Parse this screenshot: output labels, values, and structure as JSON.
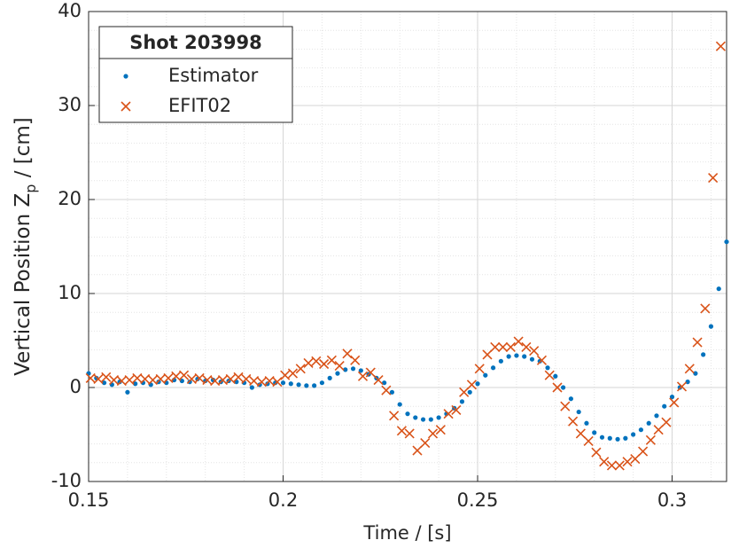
{
  "chart_data": {
    "type": "scatter",
    "xlabel": "Time / [s]",
    "ylabel": {
      "main": "Vertical Position Z",
      "sub": "p",
      "rest": " / [cm]"
    },
    "legend_title": "Shot 203998",
    "legend": "northwest",
    "grid": true,
    "minor_grid": true,
    "xminor_step": 0.01,
    "yminor_step": 2,
    "xlim": [
      0.15,
      0.314
    ],
    "ylim": [
      -10,
      40
    ],
    "xticks": [
      {
        "value": 0.15,
        "label": "0.15"
      },
      {
        "value": 0.2,
        "label": "0.2"
      },
      {
        "value": 0.25,
        "label": "0.25"
      },
      {
        "value": 0.3,
        "label": "0.3"
      }
    ],
    "yticks": [
      -10,
      0,
      10,
      20,
      30,
      40
    ],
    "series": [
      {
        "name": "Estimator",
        "color": "#0072BD",
        "marker": "dot",
        "x": [
          0.15,
          0.152,
          0.154,
          0.156,
          0.158,
          0.16,
          0.162,
          0.164,
          0.166,
          0.168,
          0.17,
          0.172,
          0.174,
          0.176,
          0.178,
          0.18,
          0.182,
          0.184,
          0.186,
          0.188,
          0.19,
          0.192,
          0.194,
          0.196,
          0.198,
          0.2,
          0.202,
          0.204,
          0.206,
          0.208,
          0.21,
          0.212,
          0.214,
          0.216,
          0.218,
          0.22,
          0.222,
          0.224,
          0.226,
          0.228,
          0.23,
          0.232,
          0.234,
          0.236,
          0.238,
          0.24,
          0.242,
          0.244,
          0.246,
          0.248,
          0.25,
          0.252,
          0.254,
          0.256,
          0.258,
          0.26,
          0.262,
          0.264,
          0.266,
          0.268,
          0.27,
          0.272,
          0.274,
          0.276,
          0.278,
          0.28,
          0.282,
          0.284,
          0.286,
          0.288,
          0.29,
          0.292,
          0.294,
          0.296,
          0.298,
          0.3,
          0.302,
          0.304,
          0.306,
          0.308,
          0.31,
          0.312,
          0.314
        ],
        "values": [
          1.5,
          1.0,
          0.5,
          0.3,
          0.6,
          -0.5,
          0.4,
          0.5,
          0.3,
          0.6,
          0.5,
          0.8,
          0.7,
          0.6,
          0.9,
          0.7,
          0.8,
          0.6,
          0.7,
          0.6,
          0.5,
          0.0,
          0.3,
          0.4,
          0.5,
          0.5,
          0.4,
          0.3,
          0.2,
          0.2,
          0.5,
          1.0,
          1.5,
          1.9,
          2.0,
          1.8,
          1.4,
          1.0,
          0.5,
          -0.5,
          -1.8,
          -2.8,
          -3.2,
          -3.4,
          -3.4,
          -3.2,
          -2.8,
          -2.2,
          -1.5,
          -0.5,
          0.4,
          1.3,
          2.1,
          2.8,
          3.3,
          3.4,
          3.3,
          3.0,
          2.8,
          2.1,
          1.2,
          0.0,
          -1.2,
          -2.6,
          -3.8,
          -4.8,
          -5.3,
          -5.4,
          -5.5,
          -5.4,
          -5.0,
          -4.5,
          -3.8,
          -3.0,
          -2.0,
          -1.0,
          0.0,
          0.6,
          1.5,
          3.5,
          6.5,
          10.5,
          15.5
        ]
      },
      {
        "name": "EFIT02",
        "color": "#D95319",
        "marker": "x",
        "x": [
          0.1505,
          0.1525,
          0.1545,
          0.1565,
          0.1585,
          0.1605,
          0.1625,
          0.1645,
          0.1665,
          0.1685,
          0.1705,
          0.1725,
          0.1745,
          0.1765,
          0.1785,
          0.1805,
          0.1825,
          0.1845,
          0.1865,
          0.1885,
          0.1905,
          0.1925,
          0.1945,
          0.1965,
          0.1985,
          0.2005,
          0.2025,
          0.2045,
          0.2065,
          0.2085,
          0.2105,
          0.2125,
          0.2145,
          0.2165,
          0.2185,
          0.2205,
          0.2225,
          0.2245,
          0.2265,
          0.2285,
          0.2305,
          0.2325,
          0.2345,
          0.2365,
          0.2385,
          0.2405,
          0.2425,
          0.2445,
          0.2465,
          0.2485,
          0.2505,
          0.2525,
          0.2545,
          0.2565,
          0.2585,
          0.2605,
          0.2625,
          0.2645,
          0.2665,
          0.2685,
          0.2705,
          0.2725,
          0.2745,
          0.2765,
          0.2785,
          0.2805,
          0.2825,
          0.2845,
          0.2865,
          0.2885,
          0.2905,
          0.2925,
          0.2945,
          0.2965,
          0.2985,
          0.3005,
          0.3025,
          0.3045,
          0.3065,
          0.3085,
          0.3105,
          0.3125
        ],
        "values": [
          1.0,
          0.9,
          1.1,
          0.8,
          0.7,
          0.8,
          1.0,
          0.9,
          0.8,
          0.9,
          1.0,
          1.2,
          1.3,
          0.9,
          1.0,
          0.8,
          0.7,
          0.8,
          0.9,
          1.1,
          0.9,
          0.7,
          0.6,
          0.7,
          0.6,
          1.3,
          1.5,
          2.0,
          2.6,
          2.8,
          2.5,
          2.9,
          2.3,
          3.6,
          2.9,
          1.2,
          1.6,
          0.8,
          -0.3,
          -3.0,
          -4.6,
          -4.9,
          -6.7,
          -5.9,
          -4.9,
          -4.5,
          -2.8,
          -2.4,
          -0.5,
          0.3,
          2.0,
          3.5,
          4.3,
          4.3,
          4.3,
          4.9,
          4.3,
          3.9,
          2.9,
          1.3,
          0.0,
          -2.0,
          -3.6,
          -4.9,
          -5.7,
          -6.9,
          -7.9,
          -8.3,
          -8.3,
          -7.9,
          -7.6,
          -6.8,
          -5.6,
          -4.5,
          -3.7,
          -1.6,
          0.1,
          2.0,
          4.8,
          8.4,
          22.3,
          36.3
        ]
      }
    ]
  }
}
